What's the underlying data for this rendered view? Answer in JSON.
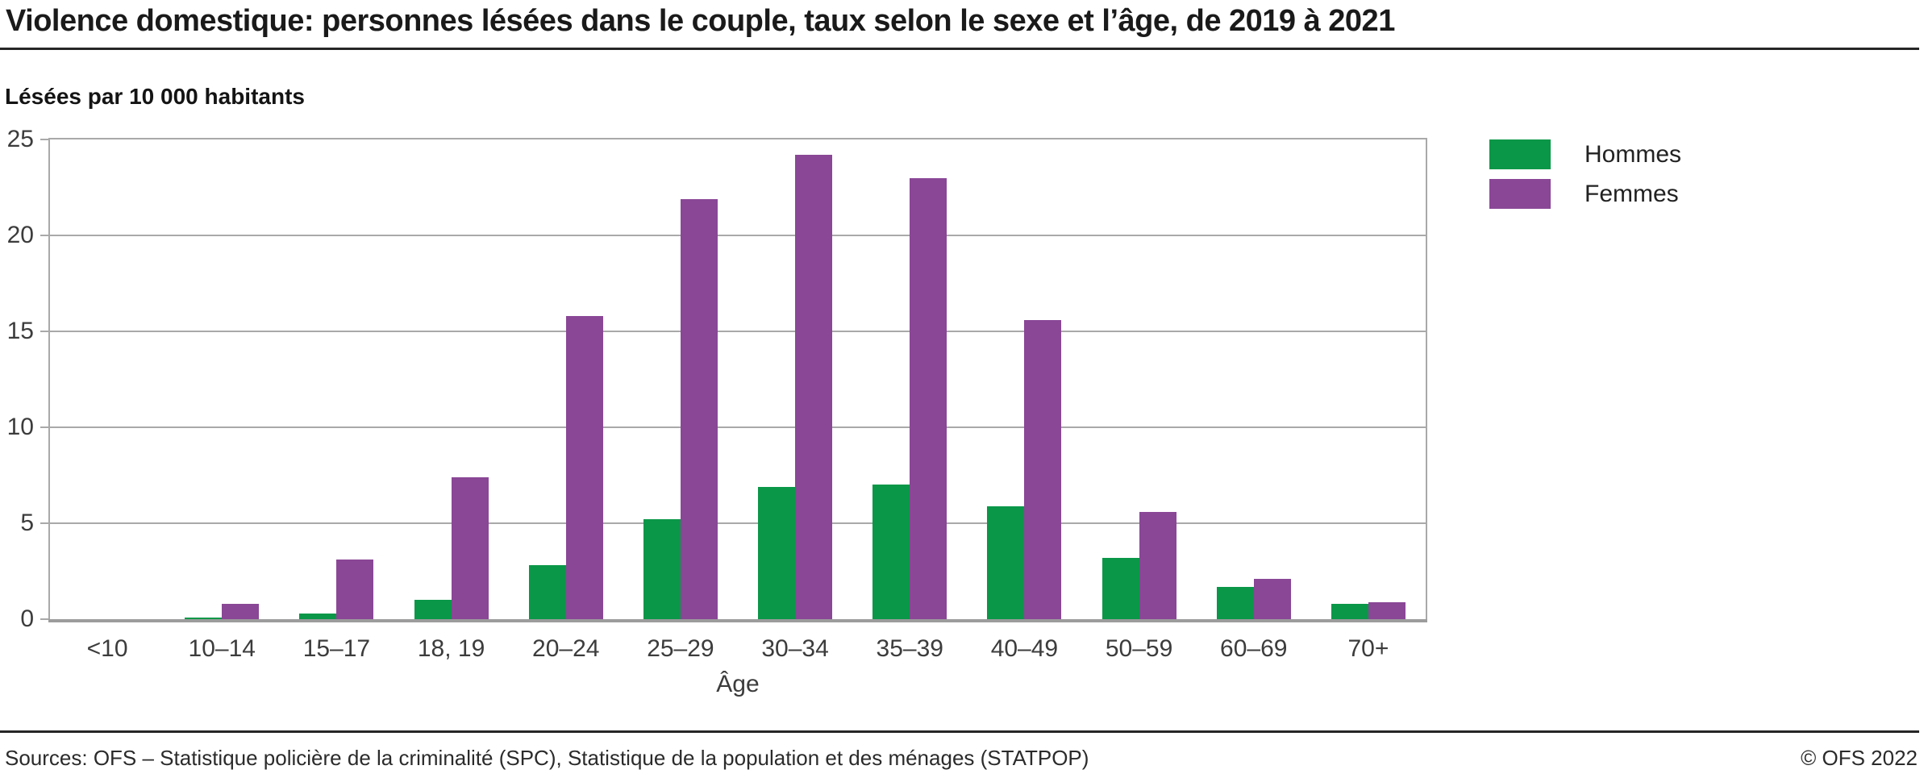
{
  "title": "Violence domestique: personnes lésées dans le couple, taux selon le sexe et l’âge, de 2019 à 2021",
  "subtitle": "Lésées par 10 000 habitants",
  "footer": {
    "sources": "Sources: OFS – Statistique policière de la criminalité (SPC), Statistique de la population et des ménages (STATPOP)",
    "copyright": "© OFS 2022"
  },
  "colors": {
    "hommes": "#0a9748",
    "femmes": "#8a4796",
    "gridline": "#a9a9a9",
    "axis_text": "#3c3c3c",
    "rule": "#262626"
  },
  "chart_data": {
    "type": "bar",
    "title": "Violence domestique: personnes lésées dans le couple, taux selon le sexe et l’âge, de 2019 à 2021",
    "ylabel": "Lésées par 10 000 habitants",
    "xlabel": "Âge",
    "categories": [
      "<10",
      "10–14",
      "15–17",
      "18, 19",
      "20–24",
      "25–29",
      "30–34",
      "35–39",
      "40–49",
      "50–59",
      "60–69",
      "70+"
    ],
    "series": [
      {
        "name": "Hommes",
        "color": "#0a9748",
        "values": [
          0,
          0.1,
          0.3,
          1.0,
          2.8,
          5.2,
          6.9,
          7.0,
          5.9,
          3.2,
          1.7,
          0.8
        ]
      },
      {
        "name": "Femmes",
        "color": "#8a4796",
        "values": [
          0,
          0.8,
          3.1,
          7.4,
          15.8,
          21.9,
          24.2,
          23.0,
          15.6,
          5.6,
          2.1,
          0.9
        ]
      }
    ],
    "ylim": [
      0,
      25
    ],
    "yticks": [
      0,
      5,
      10,
      15,
      20,
      25
    ],
    "grid": true,
    "legend_position": "right-top"
  }
}
